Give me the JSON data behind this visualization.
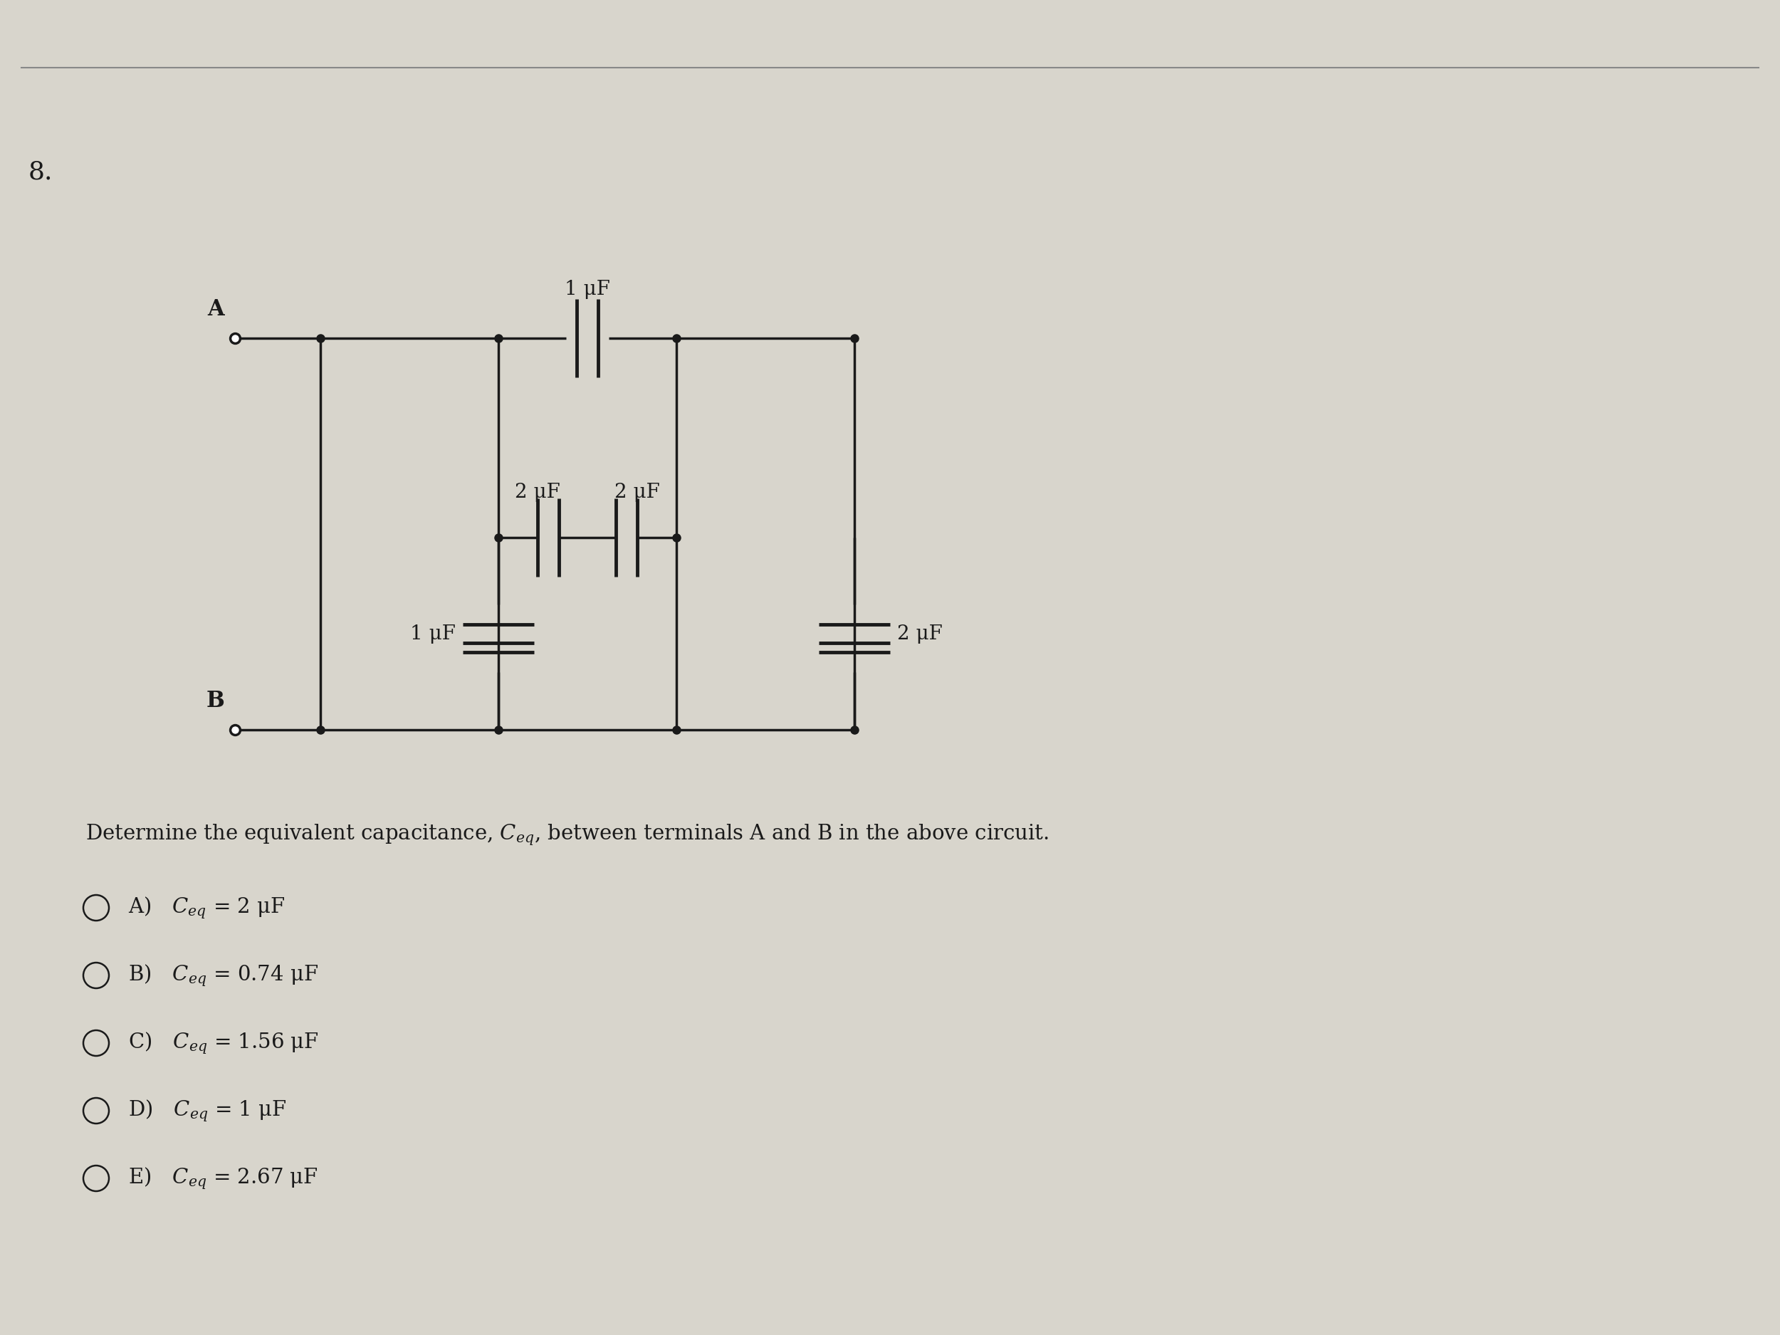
{
  "bg_color": "#d8d5cc",
  "line_color": "#1a1a1a",
  "text_color": "#1a1a1a",
  "question_number": "8.",
  "description": "Determine the equivalent capacitance, $C_{eq}$, between terminals A and B in the above circuit.",
  "choices": [
    "A) $C_{eq}$ = 2 μF",
    "B) $C_{eq}$ = 0.74 μF",
    "C) $C_{eq}$ = 1.56 μF",
    "D) $C_{eq}$ = 1 μF",
    "E) $C_{eq}$ = 2.67 μF"
  ],
  "cap_labels": {
    "top": "1 μF",
    "mid_left": "2 μF",
    "mid_right": "2 μF",
    "bot_left": "1 μF",
    "bot_right": "2 μF"
  },
  "terminal_A": "A",
  "terminal_B": "B"
}
